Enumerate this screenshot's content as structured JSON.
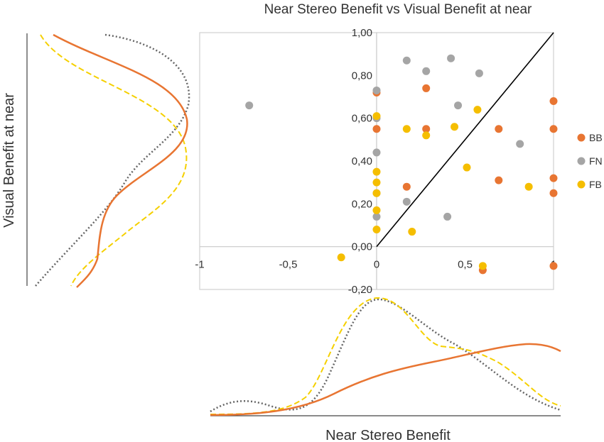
{
  "chart_data": [
    {
      "type": "scatter",
      "title": "Near Stereo Benefit vs Visual Benefit at near",
      "xlabel": "",
      "ylabel": "",
      "xlim": [
        -1,
        1
      ],
      "ylim": [
        -0.2,
        1.0
      ],
      "x_ticks": [
        "-1",
        "-0,5",
        "0",
        "0,5",
        "1"
      ],
      "y_ticks": [
        "-0,20",
        "0,00",
        "0,20",
        "0,40",
        "0,60",
        "0,80",
        "1,00"
      ],
      "grid": false,
      "legend": "right",
      "identity_line": true,
      "series": [
        {
          "name": "BB",
          "color": "#E87532",
          "points": [
            [
              0.0,
              0.55
            ],
            [
              0.0,
              0.72
            ],
            [
              0.28,
              0.74
            ],
            [
              0.28,
              0.55
            ],
            [
              0.17,
              0.28
            ],
            [
              0.69,
              0.55
            ],
            [
              1.0,
              0.68
            ],
            [
              1.0,
              0.55
            ],
            [
              1.0,
              0.32
            ],
            [
              1.0,
              0.25
            ],
            [
              0.69,
              0.31
            ],
            [
              0.6,
              -0.11
            ],
            [
              1.0,
              -0.09
            ]
          ]
        },
        {
          "name": "FN",
          "color": "#A5A5A5",
          "points": [
            [
              -0.72,
              0.66
            ],
            [
              0.0,
              0.73
            ],
            [
              0.0,
              0.6
            ],
            [
              0.0,
              0.44
            ],
            [
              0.0,
              0.25
            ],
            [
              0.0,
              0.14
            ],
            [
              0.17,
              0.87
            ],
            [
              0.28,
              0.82
            ],
            [
              0.42,
              0.88
            ],
            [
              0.58,
              0.81
            ],
            [
              0.46,
              0.66
            ],
            [
              0.81,
              0.48
            ],
            [
              0.17,
              0.21
            ],
            [
              0.4,
              0.14
            ]
          ]
        },
        {
          "name": "FB",
          "color": "#F5BE00",
          "points": [
            [
              -0.2,
              -0.05
            ],
            [
              0.0,
              0.61
            ],
            [
              0.0,
              0.35
            ],
            [
              0.0,
              0.3
            ],
            [
              0.0,
              0.25
            ],
            [
              0.0,
              0.17
            ],
            [
              0.0,
              0.08
            ],
            [
              0.17,
              0.55
            ],
            [
              0.28,
              0.52
            ],
            [
              0.44,
              0.56
            ],
            [
              0.57,
              0.64
            ],
            [
              0.51,
              0.37
            ],
            [
              0.86,
              0.28
            ],
            [
              0.2,
              0.07
            ],
            [
              0.6,
              -0.09
            ]
          ]
        }
      ]
    },
    {
      "type": "line",
      "orientation": "vertical-density",
      "ylabel": "Visual Benefit at near",
      "series": [
        {
          "name": "BB",
          "color": "#E87532",
          "style": "solid"
        },
        {
          "name": "FN",
          "color": "#666666",
          "style": "dotted"
        },
        {
          "name": "FB",
          "color": "#F5D000",
          "style": "dashed"
        }
      ]
    },
    {
      "type": "line",
      "orientation": "horizontal-density",
      "xlabel": "Near Stereo Benefit",
      "series": [
        {
          "name": "BB",
          "color": "#E87532",
          "style": "solid"
        },
        {
          "name": "FN",
          "color": "#666666",
          "style": "dotted"
        },
        {
          "name": "FB",
          "color": "#F5D000",
          "style": "dashed"
        }
      ]
    }
  ]
}
